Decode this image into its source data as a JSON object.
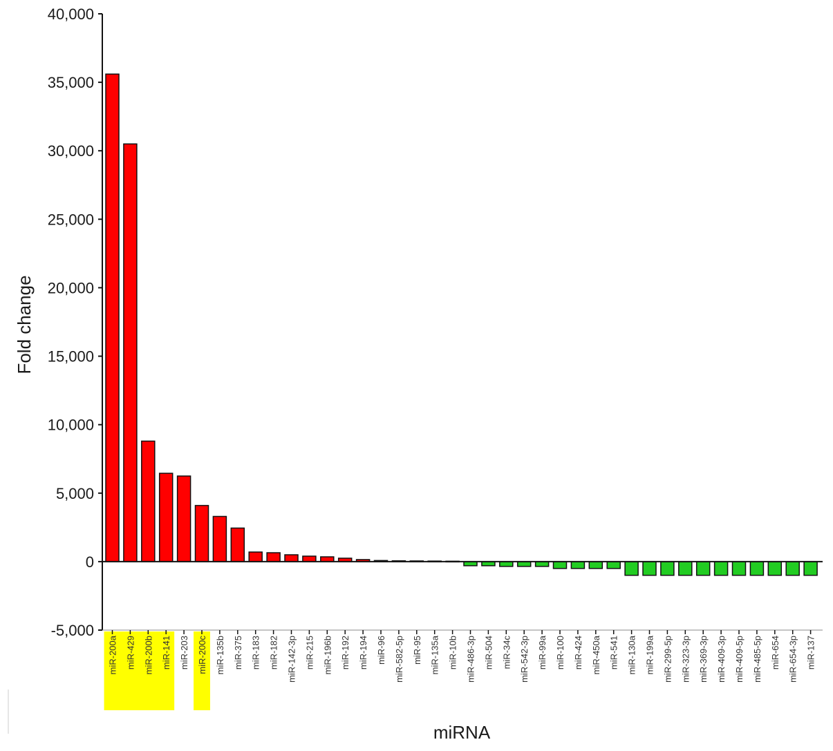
{
  "chart_data": {
    "type": "bar",
    "title": "",
    "xlabel": "miRNA",
    "ylabel": "Fold change",
    "ylim": [
      -5000,
      40000
    ],
    "yticks": [
      -5000,
      0,
      5000,
      10000,
      15000,
      20000,
      25000,
      30000,
      35000,
      40000
    ],
    "ytick_labels": [
      "-5,000",
      "0",
      "5,000",
      "10,000",
      "15,000",
      "20,000",
      "25,000",
      "30,000",
      "35,000",
      "40,000"
    ],
    "grid": false,
    "legend": "none",
    "categories": [
      "miR-200a",
      "miR-429",
      "miR-200b",
      "miR-141",
      "miR-203",
      "miR-200c",
      "miR-135b",
      "miR-375",
      "miR-183",
      "miR-182",
      "miR-142-3p",
      "miR-215",
      "miR-196b",
      "miR-192",
      "miR-194",
      "miR-96",
      "miR-582-5p",
      "miR-95",
      "miR-135a",
      "miR-10b",
      "miR-486-3p",
      "miR-504",
      "miR-34c",
      "miR-542-3p",
      "miR-99a",
      "miR-100",
      "miR-424",
      "miR-450a",
      "miR-541",
      "miR-130a",
      "miR-199a",
      "miR-299-5p",
      "miR-323-3p",
      "miR-369-3p",
      "miR-409-3p",
      "miR-409-5p",
      "miR-485-5p",
      "miR-654",
      "miR-654-3p",
      "miR-137"
    ],
    "values": [
      35600,
      30500,
      8800,
      6450,
      6250,
      4100,
      3300,
      2450,
      700,
      650,
      500,
      400,
      350,
      250,
      150,
      80,
      60,
      50,
      40,
      30,
      -300,
      -300,
      -350,
      -350,
      -350,
      -500,
      -500,
      -500,
      -500,
      -1000,
      -1000,
      -1000,
      -1000,
      -1000,
      -1000,
      -1000,
      -1000,
      -1000,
      -1000,
      -1000
    ],
    "highlighted_categories": [
      "miR-200a",
      "miR-429",
      "miR-200b",
      "miR-141",
      "miR-200c"
    ],
    "colors": {
      "positive": "#ff0000",
      "negative": "#22cc22",
      "bar_edge": "#111111",
      "highlight": "#ffff00",
      "axis": "#111111"
    }
  }
}
